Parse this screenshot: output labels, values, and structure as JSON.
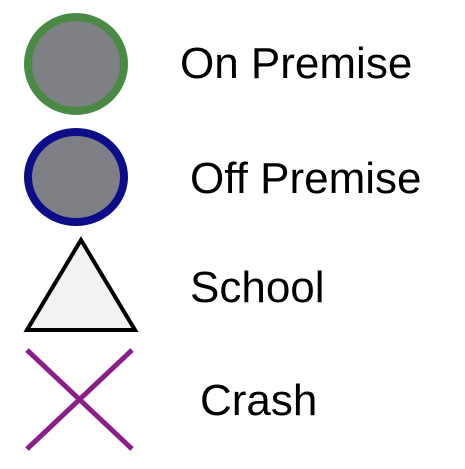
{
  "legend": {
    "items": [
      {
        "label": "On Premise",
        "icon": "circle-icon",
        "fill_color": "#7f7f86",
        "stroke_color": "#4a8a45"
      },
      {
        "label": "Off Premise",
        "icon": "circle-icon",
        "fill_color": "#7f7f86",
        "stroke_color": "#0d0d8a"
      },
      {
        "label": "School",
        "icon": "triangle-icon",
        "fill_color": "#f2f2f2",
        "stroke_color": "#000000"
      },
      {
        "label": "Crash",
        "icon": "cross-icon",
        "stroke_color": "#8a1f8a"
      }
    ]
  }
}
